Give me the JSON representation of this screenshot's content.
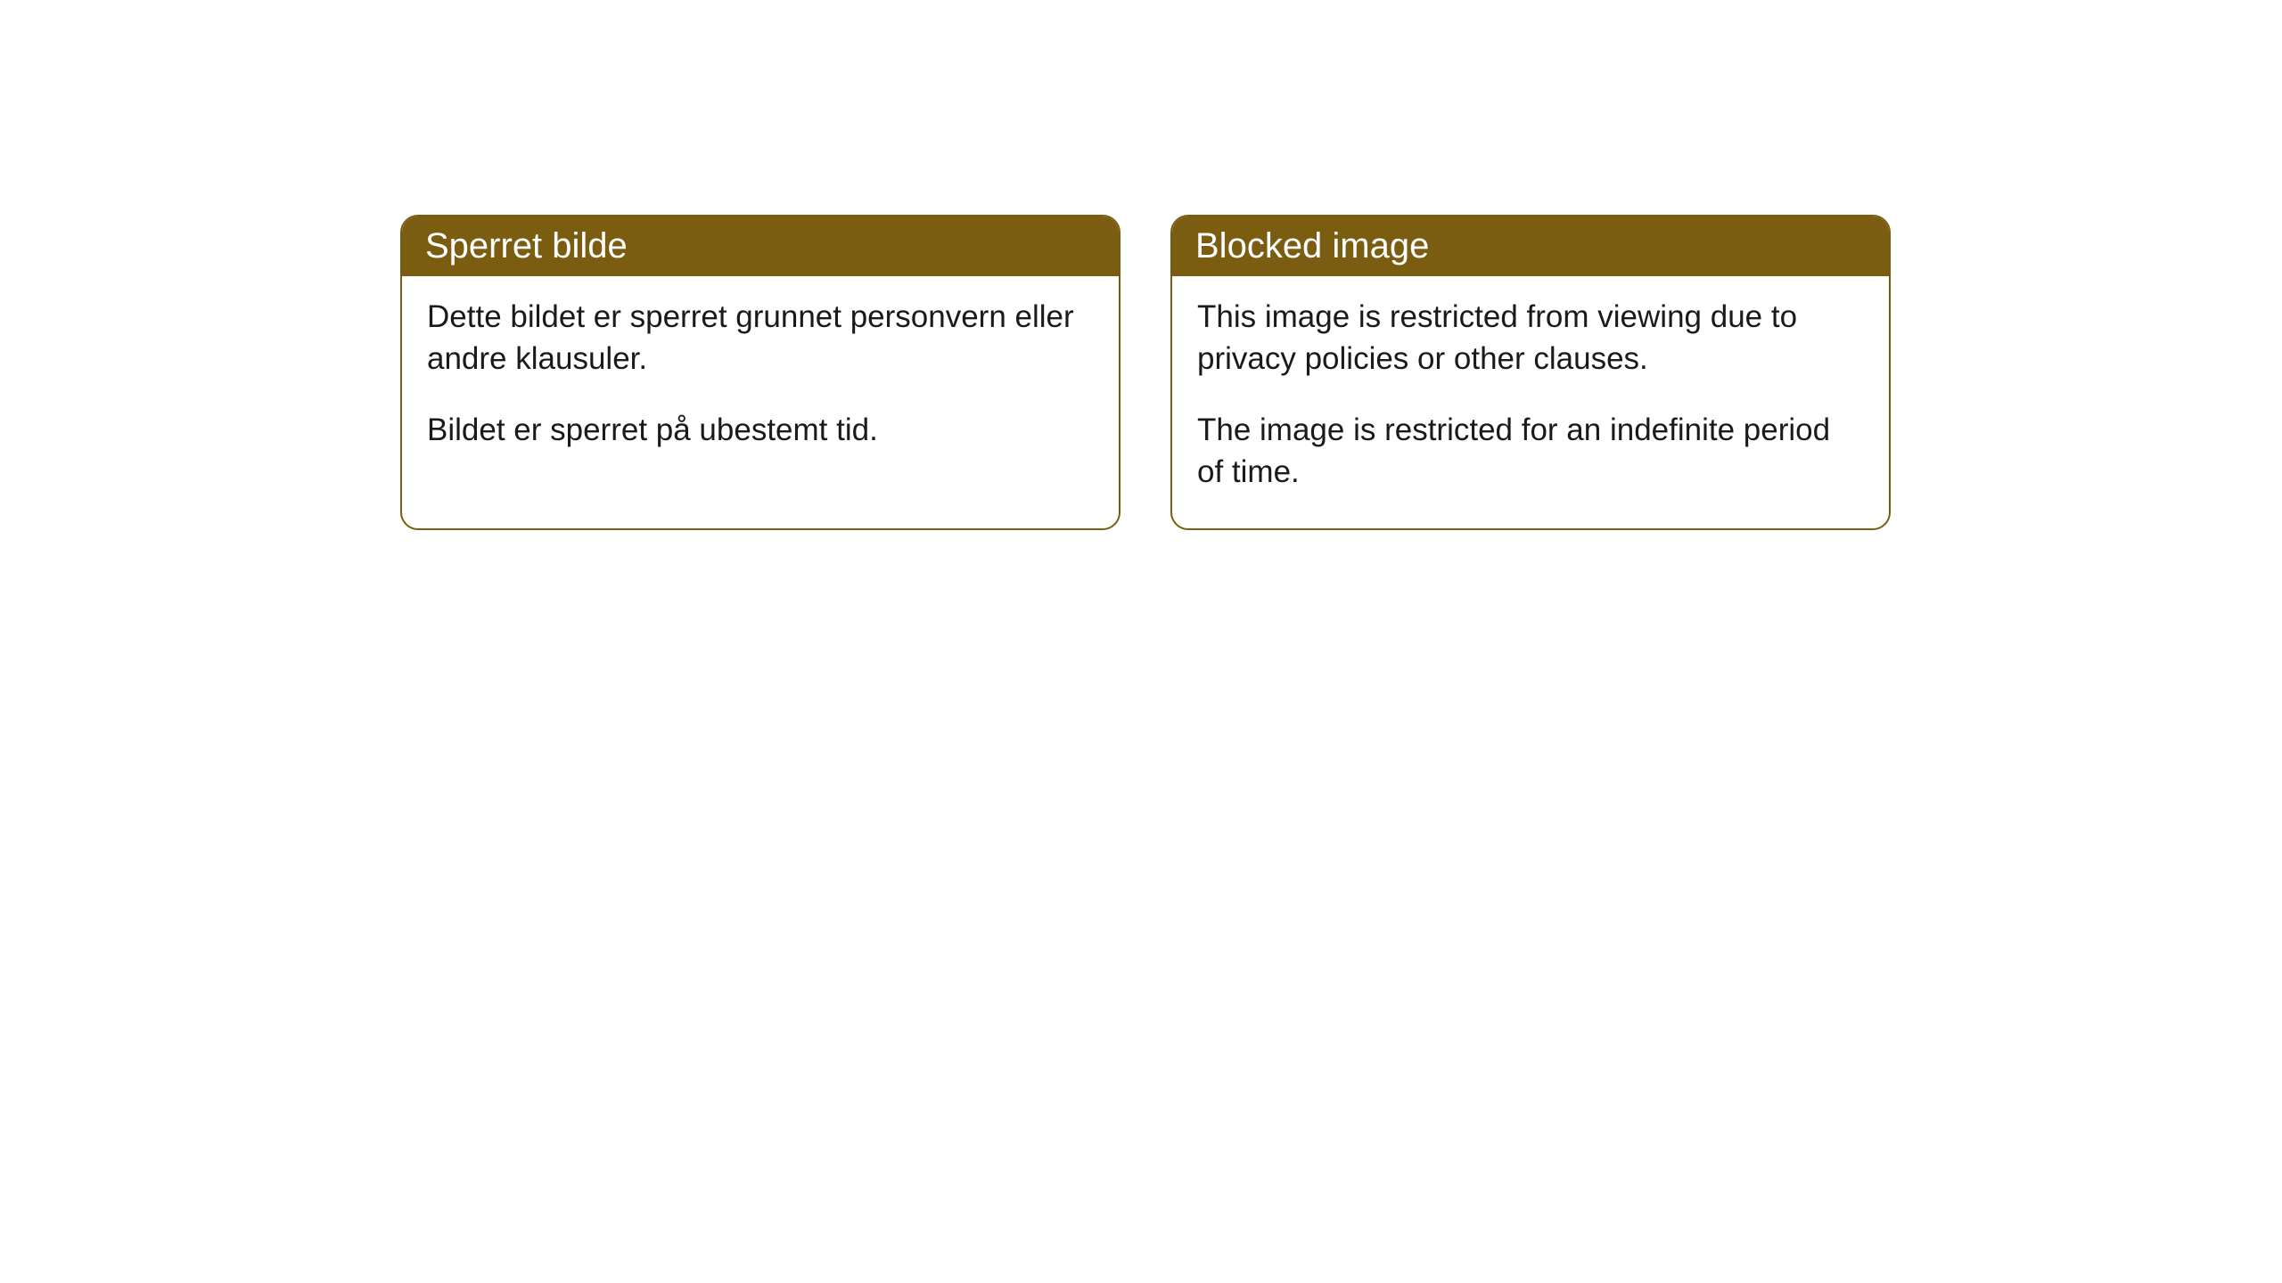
{
  "cards": [
    {
      "header": "Sperret bilde",
      "paragraph1": "Dette bildet er sperret grunnet personvern eller andre klausuler.",
      "paragraph2": "Bildet er sperret på ubestemt tid."
    },
    {
      "header": "Blocked image",
      "paragraph1": "This image is restricted from viewing due to privacy policies or other clauses.",
      "paragraph2": "The image is restricted for an indefinite period of time."
    }
  ],
  "style": {
    "header_bg_color": "#7a5d11",
    "header_text_color": "#ffffff",
    "border_color": "#7a5d11",
    "body_bg_color": "#ffffff",
    "body_text_color": "#1a1a1a",
    "border_radius": 20,
    "header_fontsize": 40,
    "body_fontsize": 35
  }
}
